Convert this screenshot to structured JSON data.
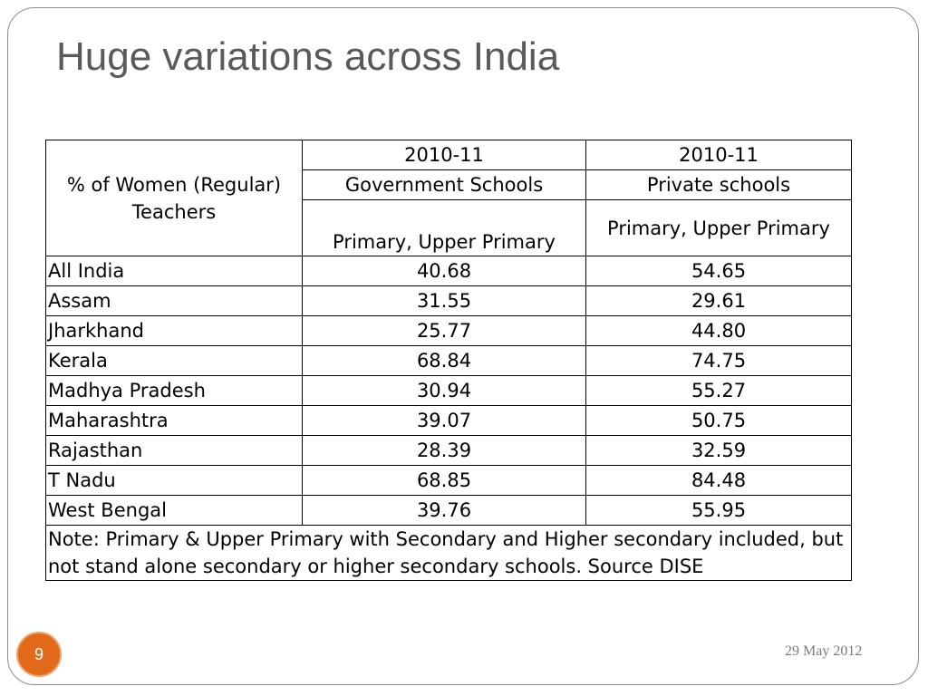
{
  "slide": {
    "title": "Huge variations across India",
    "page_number": "9",
    "date": "29 May 2012"
  },
  "table": {
    "row_header": "% of Women (Regular) Teachers",
    "col1_year": "2010-11",
    "col2_year": "2010-11",
    "col1_type": "Government Schools",
    "col2_type": "Private schools",
    "col1_level": "Primary, Upper Primary",
    "col2_level": "Primary, Upper Primary",
    "rows": [
      {
        "state": "All India",
        "gov": "40.68",
        "pvt": "54.65"
      },
      {
        "state": "Assam",
        "gov": "31.55",
        "pvt": "29.61"
      },
      {
        "state": "Jharkhand",
        "gov": "25.77",
        "pvt": "44.80"
      },
      {
        "state": "Kerala",
        "gov": "68.84",
        "pvt": "74.75"
      },
      {
        "state": "Madhya Pradesh",
        "gov": "30.94",
        "pvt": "55.27"
      },
      {
        "state": "Maharashtra",
        "gov": "39.07",
        "pvt": "50.75"
      },
      {
        "state": "Rajasthan",
        "gov": "28.39",
        "pvt": "32.59"
      },
      {
        "state": "T Nadu",
        "gov": "68.85",
        "pvt": "84.48"
      },
      {
        "state": "West Bengal",
        "gov": "39.76",
        "pvt": "55.95"
      }
    ],
    "note": "Note: Primary & Upper Primary with Secondary and Higher secondary included, but not stand alone secondary or higher secondary schools. Source DISE"
  }
}
